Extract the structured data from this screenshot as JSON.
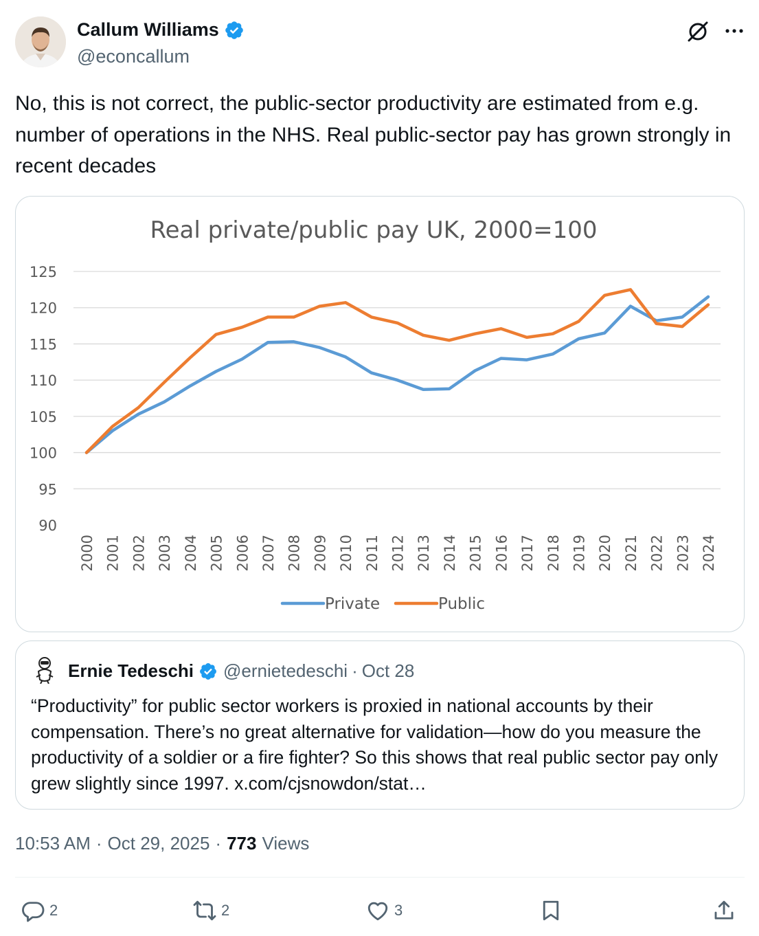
{
  "author": {
    "display_name": "Callum Williams",
    "handle": "@econcallum"
  },
  "tweet": {
    "text": "No, this is not correct, the public-sector productivity are estimated from e.g. number of operations in the NHS. Real public-sector pay has grown strongly in recent decades"
  },
  "chart_data": {
    "type": "line",
    "title": "Real private/public pay UK, 2000=100",
    "xlabel": "",
    "ylabel": "",
    "ylim": [
      90,
      125
    ],
    "yticks": [
      "125",
      "120",
      "115",
      "110",
      "105",
      "100",
      "95",
      "90"
    ],
    "x": [
      "2000",
      "2001",
      "2002",
      "2003",
      "2004",
      "2005",
      "2006",
      "2007",
      "2008",
      "2009",
      "2010",
      "2011",
      "2012",
      "2013",
      "2014",
      "2015",
      "2016",
      "2017",
      "2018",
      "2019",
      "2020",
      "2021",
      "2022",
      "2023",
      "2024"
    ],
    "series": [
      {
        "name": "Private",
        "color": "#5b9bd5",
        "values": [
          100.0,
          103.0,
          105.3,
          107.0,
          109.2,
          111.2,
          112.9,
          115.2,
          115.3,
          114.5,
          113.2,
          111.0,
          110.0,
          108.7,
          108.8,
          111.3,
          113.0,
          112.8,
          113.6,
          115.7,
          116.5,
          120.2,
          118.2,
          118.7,
          121.5
        ]
      },
      {
        "name": "Public",
        "color": "#ed7d31",
        "values": [
          100.0,
          103.6,
          106.2,
          109.7,
          113.1,
          116.3,
          117.3,
          118.7,
          118.7,
          120.2,
          120.7,
          118.7,
          117.9,
          116.2,
          115.5,
          116.4,
          117.1,
          115.9,
          116.4,
          118.1,
          121.7,
          122.5,
          117.8,
          117.4,
          120.4
        ]
      }
    ],
    "legend": "bottom-center"
  },
  "quote": {
    "display_name": "Ernie Tedeschi",
    "handle": "@ernietedeschi",
    "dot": "·",
    "date": "Oct 28",
    "text": "“Productivity” for public sector workers is proxied in national accounts by their compensation. There’s no great alternative for validation—how do you measure the productivity of a soldier or a fire fighter? So this shows that real public sector pay only grew slightly since 1997. x.com/cjsnowdon/stat…"
  },
  "meta": {
    "time": "10:53 AM",
    "sep": "·",
    "date": "Oct 29, 2025",
    "views_count": "773",
    "views_label": "Views"
  },
  "actions": {
    "replies": "2",
    "reposts": "2",
    "likes": "3"
  },
  "colors": {
    "verified": "#1d9bf0",
    "muted": "#536471",
    "text": "#0f1419",
    "border": "#cfd9de"
  },
  "icons": [
    "verified-badge-icon",
    "grok-icon",
    "more-icon",
    "reply-icon",
    "repost-icon",
    "like-icon",
    "bookmark-icon",
    "share-icon"
  ]
}
